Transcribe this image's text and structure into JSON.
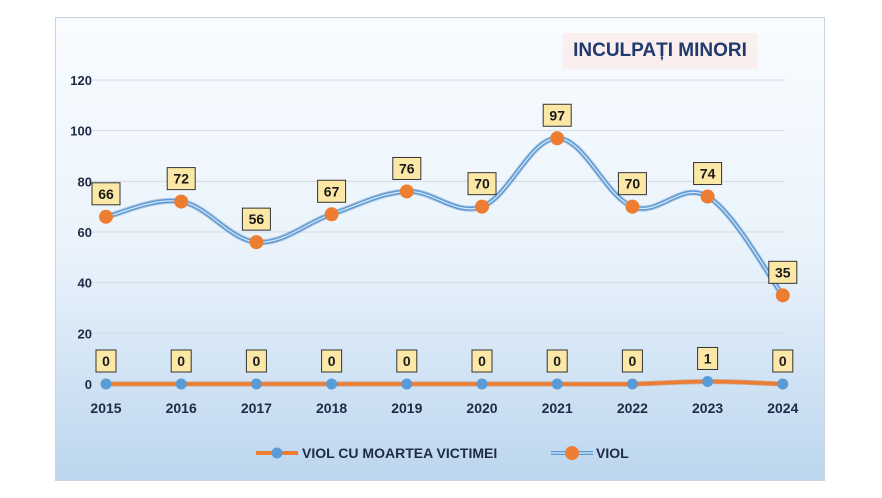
{
  "chart_data": {
    "type": "line",
    "title": "INCULPAȚI MINORI",
    "categories": [
      "2015",
      "2016",
      "2017",
      "2018",
      "2019",
      "2020",
      "2021",
      "2022",
      "2023",
      "2024"
    ],
    "series": [
      {
        "name": "VIOL CU MOARTEA VICTIMEI",
        "values": [
          0,
          0,
          0,
          0,
          0,
          0,
          0,
          0,
          1,
          0
        ],
        "color": "#f08a3c",
        "line_color": "#ec7d33",
        "marker_color": "#5b9bd5"
      },
      {
        "name": "VIOL",
        "values": [
          66,
          72,
          56,
          67,
          76,
          70,
          97,
          70,
          74,
          35
        ],
        "color": "#5b9bd5",
        "line_color": "#5b9bd5",
        "marker_color": "#ed7d31"
      }
    ],
    "y_ticks": [
      "0",
      "20",
      "40",
      "60",
      "80",
      "100",
      "120"
    ],
    "ylim": [
      0,
      120
    ],
    "grid": true,
    "legend_position": "bottom",
    "label_box_color": "#fce8a6"
  }
}
